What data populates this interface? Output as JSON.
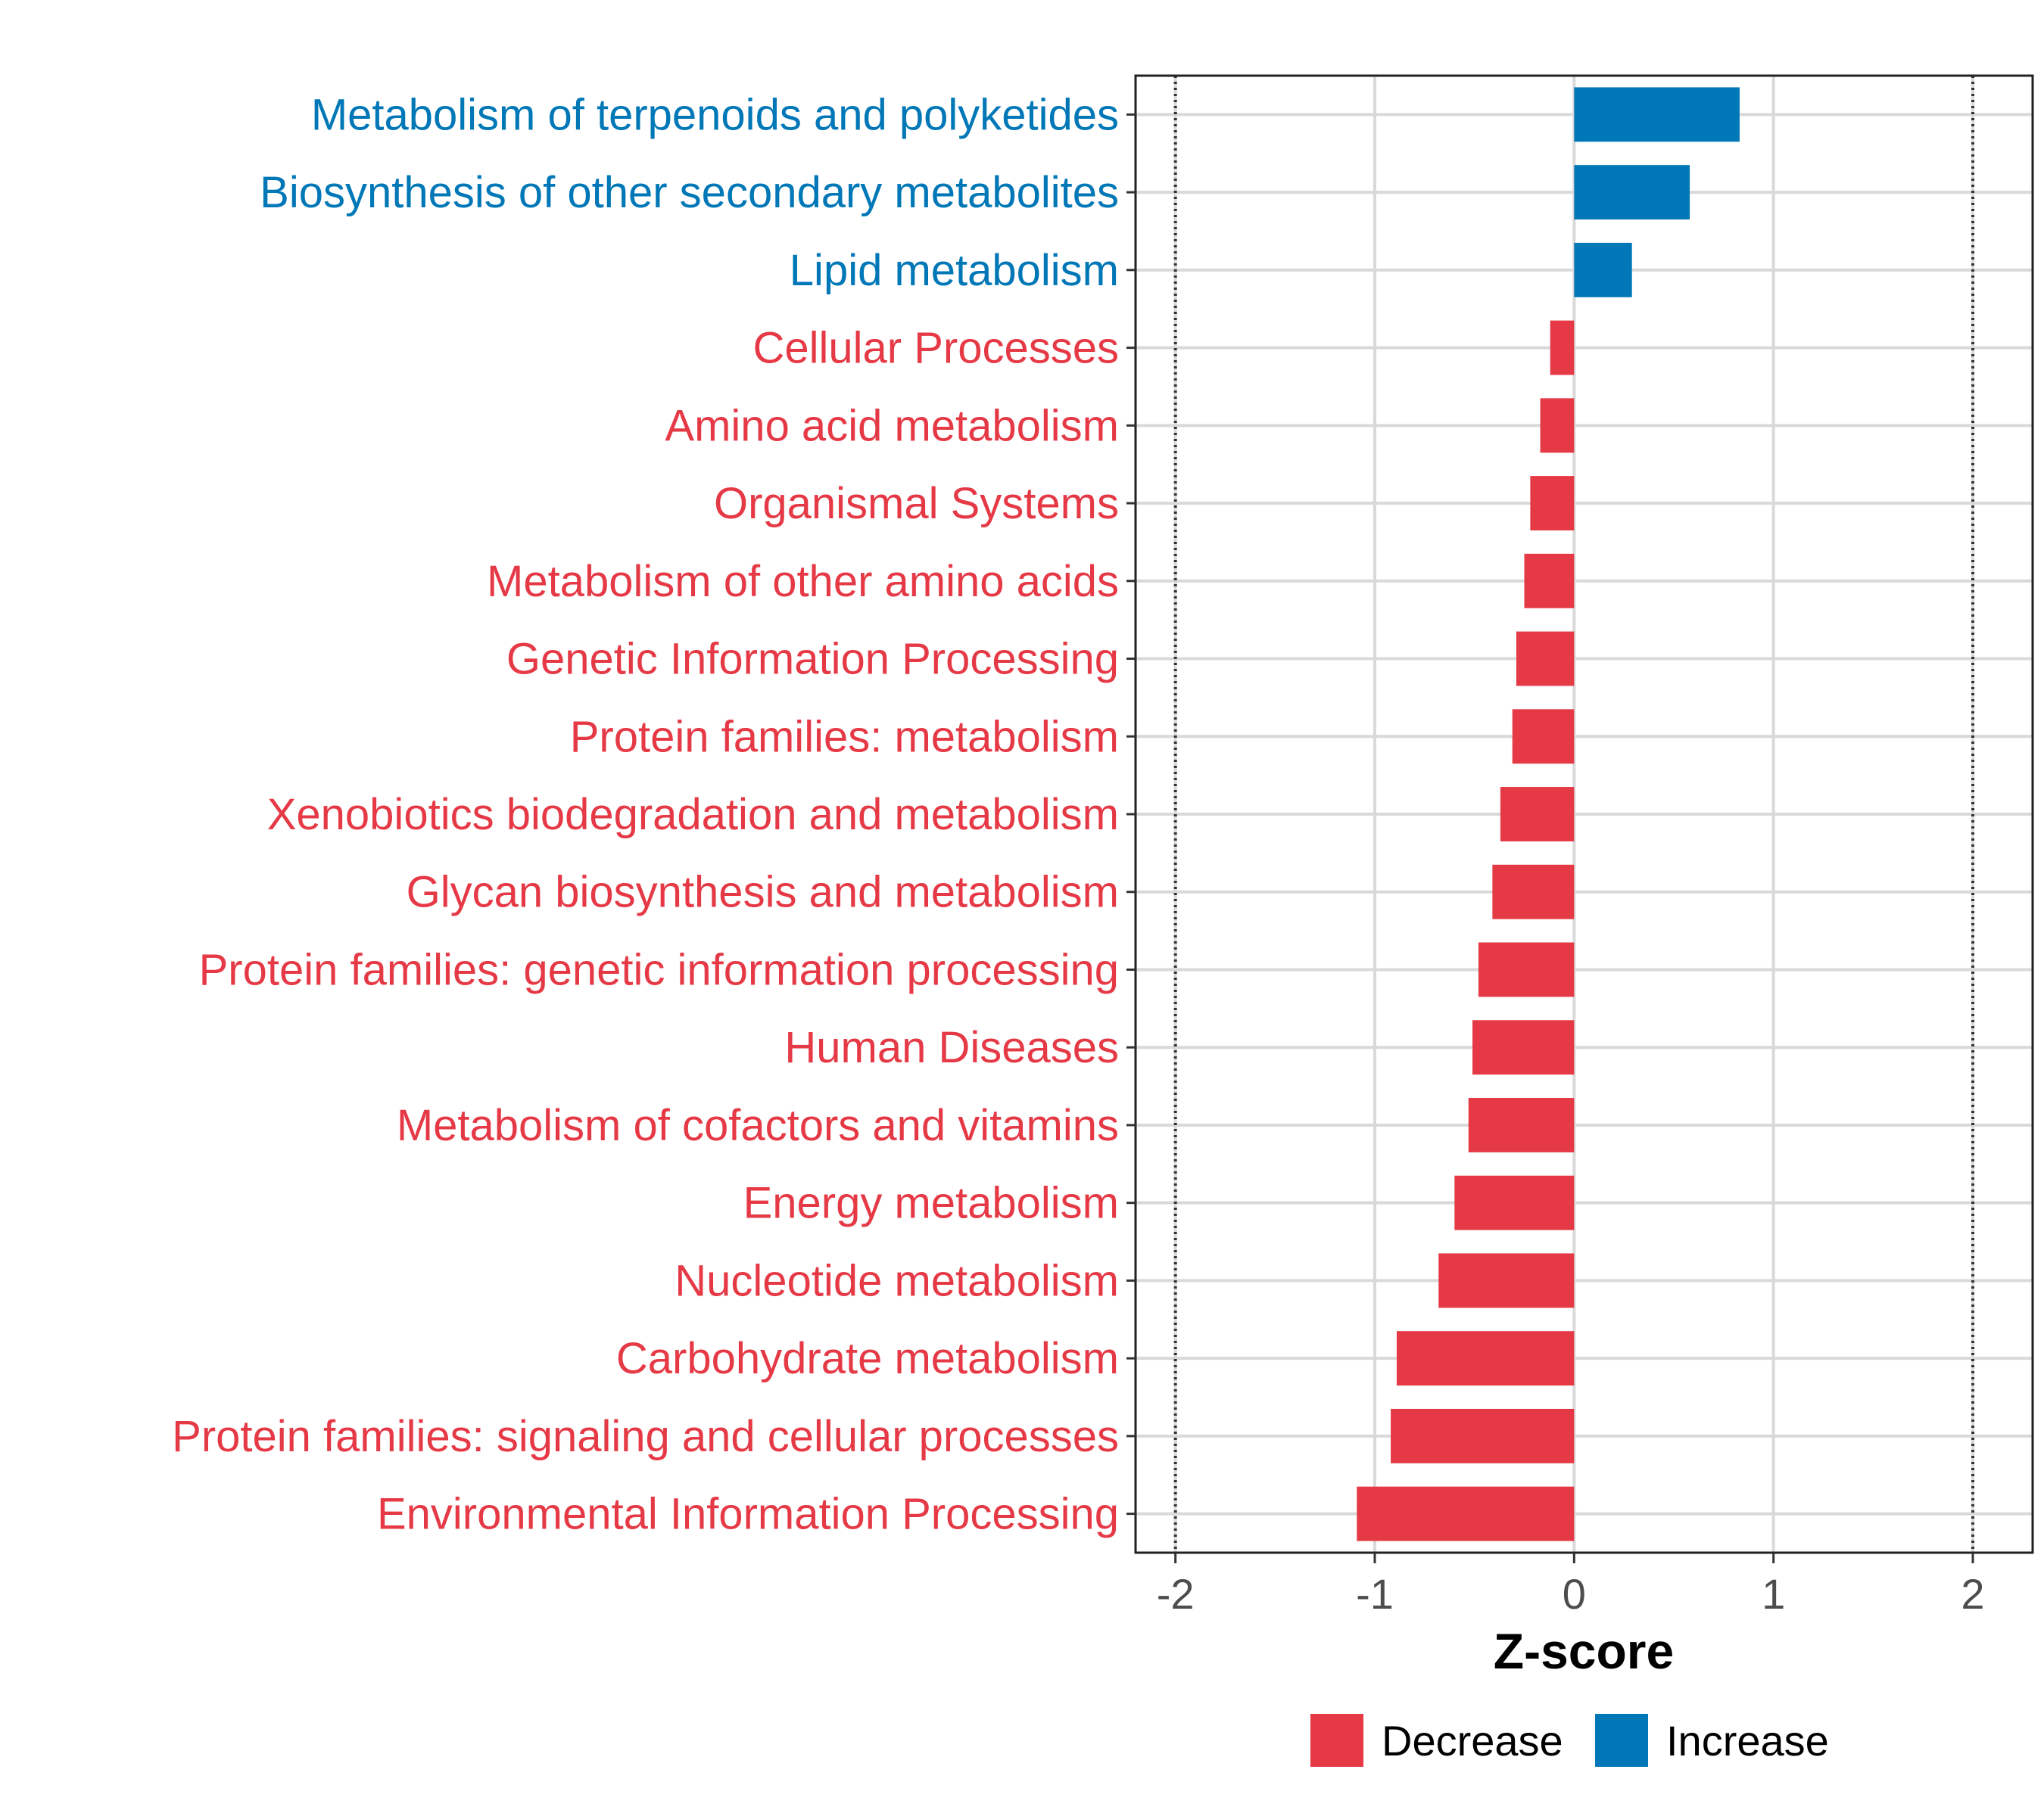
{
  "chart_data": {
    "type": "bar",
    "orientation": "horizontal",
    "xlabel": "Z-score",
    "xlim": [
      -2.2,
      2.3
    ],
    "xticks": [
      -2,
      -1,
      0,
      1,
      2
    ],
    "xtick_labels": [
      "-2",
      "-1",
      "0",
      "1",
      "2"
    ],
    "reference_lines": [
      -2,
      2
    ],
    "categories": [
      "Metabolism of terpenoids and polyketides",
      "Biosynthesis of other secondary metabolites",
      "Lipid metabolism",
      "Cellular Processes",
      "Amino acid metabolism",
      "Organismal Systems",
      "Metabolism of other amino acids",
      "Genetic Information Processing",
      "Protein families: metabolism",
      "Xenobiotics biodegradation and metabolism",
      "Glycan biosynthesis and metabolism",
      "Protein families: genetic information processing",
      "Human Diseases",
      "Metabolism of cofactors and vitamins",
      "Energy metabolism",
      "Nucleotide metabolism",
      "Carbohydrate metabolism",
      "Protein families: signaling and cellular processes",
      "Environmental Information Processing"
    ],
    "values": [
      0.83,
      0.58,
      0.29,
      -0.12,
      -0.17,
      -0.22,
      -0.25,
      -0.29,
      -0.31,
      -0.37,
      -0.41,
      -0.48,
      -0.51,
      -0.53,
      -0.6,
      -0.68,
      -0.89,
      -0.92,
      -1.09
    ],
    "groups": [
      "Increase",
      "Increase",
      "Increase",
      "Decrease",
      "Decrease",
      "Decrease",
      "Decrease",
      "Decrease",
      "Decrease",
      "Decrease",
      "Decrease",
      "Decrease",
      "Decrease",
      "Decrease",
      "Decrease",
      "Decrease",
      "Decrease",
      "Decrease",
      "Decrease"
    ],
    "legend": {
      "position": "bottom",
      "entries": [
        {
          "label": "Decrease",
          "color": "#E63946"
        },
        {
          "label": "Increase",
          "color": "#0077B6"
        }
      ]
    },
    "colors": {
      "Decrease": "#E63946",
      "Increase": "#0077B6"
    },
    "grid": true
  }
}
